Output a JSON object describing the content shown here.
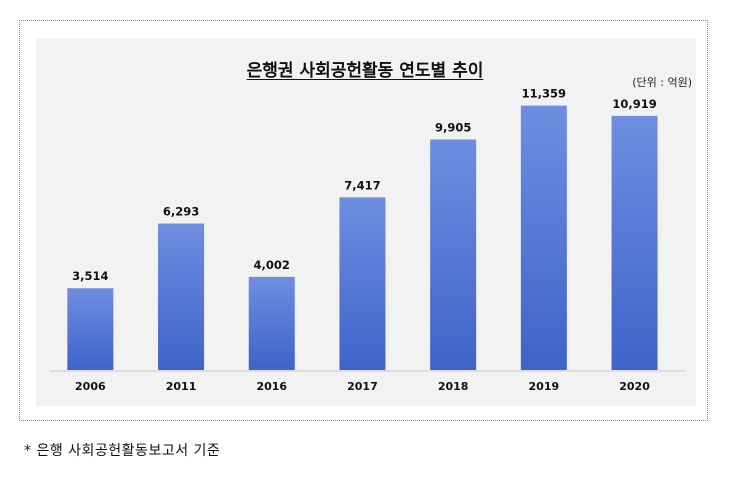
{
  "footnote": "* 은행 사회공헌활동보고서 기준",
  "chart_data": {
    "type": "bar",
    "title": "은행권 사회공헌활동 연도별 추이",
    "unit": "(단위 : 억원)",
    "categories": [
      "2006",
      "2011",
      "2016",
      "2017",
      "2018",
      "2019",
      "2020"
    ],
    "values": [
      3514,
      6293,
      4002,
      7417,
      9905,
      11359,
      10919
    ],
    "value_labels": [
      "3,514",
      "6,293",
      "4,002",
      "7,417",
      "9,905",
      "11,359",
      "10,919"
    ],
    "ylim": [
      0,
      11600
    ],
    "grid": false,
    "bar_color": "#4a6fd1",
    "bar_color_light": "#6f8ee0"
  }
}
